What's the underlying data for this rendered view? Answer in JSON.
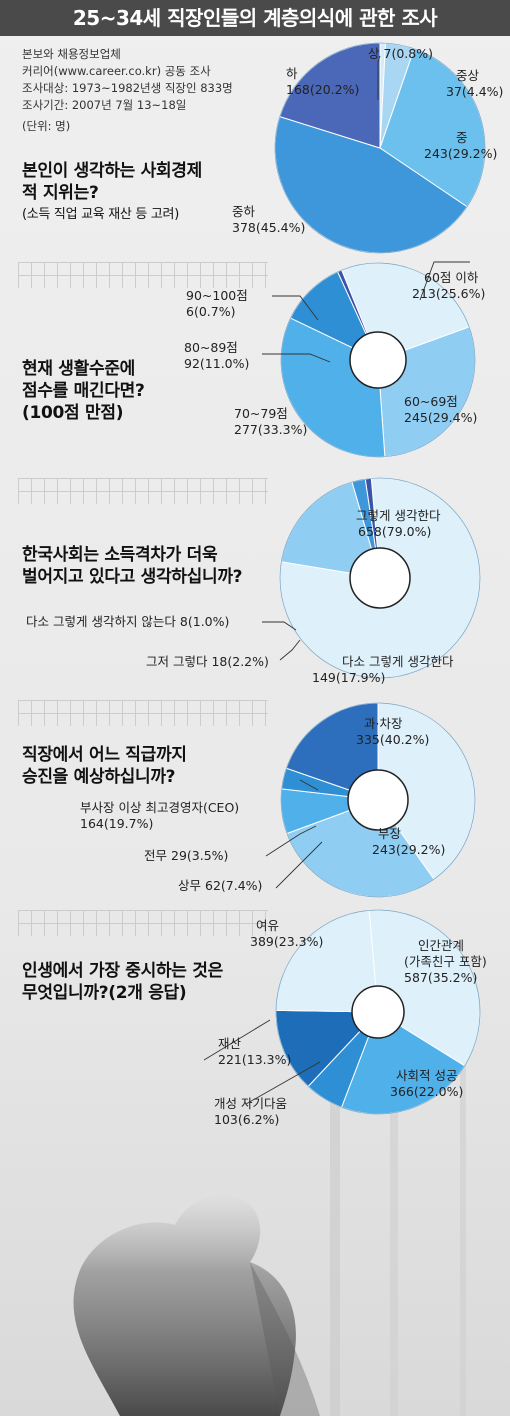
{
  "title": "25~34세 직장인들의 계층의식에 관한 조사",
  "meta": {
    "source": "본보와 채용정보업체",
    "source2": "커리어(www.career.co.kr) 공동 조사",
    "target": "조사대상: 1973~1982년생 직장인 833명",
    "period": "조사기간: 2007년 7월 13~18일",
    "unit": "(단위: 명)"
  },
  "chart_data": [
    {
      "type": "pie",
      "title": "본인이 생각하는 사회경제적 지위는?",
      "subtitle": "(소득 직업 교육 재산 등 고려)",
      "slices": [
        {
          "name": "상",
          "value": 7,
          "pct": "0.8%",
          "label_value": "7(0.8%)"
        },
        {
          "name": "중상",
          "value": 37,
          "pct": "4.4%",
          "label_value": "37(4.4%)"
        },
        {
          "name": "중",
          "value": 243,
          "pct": "29.2%",
          "label_value": "243(29.2%)"
        },
        {
          "name": "중하",
          "value": 378,
          "pct": "45.4%",
          "label_value": "378(45.4%)"
        },
        {
          "name": "하",
          "value": 168,
          "pct": "20.2%",
          "label_value": "168(20.2%)"
        }
      ]
    },
    {
      "type": "pie",
      "title": "현재 생활수준에 점수를 매긴다면? (100점 만점)",
      "title_lines": [
        "현재 생활수준에",
        "점수를 매긴다면?",
        "(100점 만점)"
      ],
      "slices": [
        {
          "name": "60점 이하",
          "value": 213,
          "pct": "25.6%",
          "label_value": "213(25.6%)"
        },
        {
          "name": "60~69점",
          "value": 245,
          "pct": "29.4%",
          "label_value": "245(29.4%)"
        },
        {
          "name": "70~79점",
          "value": 277,
          "pct": "33.3%",
          "label_value": "277(33.3%)"
        },
        {
          "name": "80~89점",
          "value": 92,
          "pct": "11.0%",
          "label_value": "92(11.0%)"
        },
        {
          "name": "90~100점",
          "value": 6,
          "pct": "0.7%",
          "label_value": "6(0.7%)"
        }
      ]
    },
    {
      "type": "pie",
      "title": "한국사회는 소득격차가 더욱 벌어지고 있다고 생각하십니까?",
      "title_lines": [
        "한국사회는 소득격차가 더욱",
        "벌어지고 있다고 생각하십니까?"
      ],
      "slices": [
        {
          "name": "그렇게 생각한다",
          "value": 658,
          "pct": "79.0%",
          "label_value": "658(79.0%)"
        },
        {
          "name": "다소 그렇게 생각한다",
          "value": 149,
          "pct": "17.9%",
          "label_value": "149(17.9%)"
        },
        {
          "name": "그저 그렇다",
          "value": 18,
          "pct": "2.2%",
          "label_value": "18(2.2%)"
        },
        {
          "name": "다소 그렇게 생각하지 않는다",
          "value": 8,
          "pct": "1.0%",
          "label_value": "8(1.0%)"
        }
      ]
    },
    {
      "type": "pie",
      "title": "직장에서 어느 직급까지 승진을 예상하십니까?",
      "title_lines": [
        "직장에서 어느 직급까지",
        "승진을 예상하십니까?"
      ],
      "slices": [
        {
          "name": "과·차장",
          "value": 335,
          "pct": "40.2%",
          "label_value": "335(40.2%)"
        },
        {
          "name": "부장",
          "value": 243,
          "pct": "29.2%",
          "label_value": "243(29.2%)"
        },
        {
          "name": "상무",
          "value": 62,
          "pct": "7.4%",
          "label_value": "62(7.4%)"
        },
        {
          "name": "전무",
          "value": 29,
          "pct": "3.5%",
          "label_value": "29(3.5%)"
        },
        {
          "name": "부사장 이상 최고경영자(CEO)",
          "value": 164,
          "pct": "19.7%",
          "label_value": "164(19.7%)"
        }
      ]
    },
    {
      "type": "pie",
      "title": "인생에서 가장 중시하는 것은 무엇입니까?(2개 응답)",
      "title_lines": [
        "인생에서 가장 중시하는 것은",
        "무엇입니까?(2개 응답)"
      ],
      "slices": [
        {
          "name": "인간관계",
          "name2": "(가족친구 포함)",
          "value": 587,
          "pct": "35.2%",
          "label_value": "587(35.2%)"
        },
        {
          "name": "사회적 성공",
          "value": 366,
          "pct": "22.0%",
          "label_value": "366(22.0%)"
        },
        {
          "name": "개성 자기다움",
          "value": 103,
          "pct": "6.2%",
          "label_value": "103(6.2%)"
        },
        {
          "name": "재산",
          "value": 221,
          "pct": "13.3%",
          "label_value": "221(13.3%)"
        },
        {
          "name": "여유",
          "value": 389,
          "pct": "23.3%",
          "label_value": "389(23.3%)"
        }
      ]
    }
  ],
  "colors": {
    "c1": [
      "#d7ecf8",
      "#a9d7f3",
      "#6cc0ee",
      "#3d97da",
      "#4a67b8"
    ],
    "c2": [
      "#def0fa",
      "#8fcdf2",
      "#4fb0ea",
      "#2e8fd4",
      "#3a55a8"
    ],
    "c3": [
      "#def0fa",
      "#8fcdf2",
      "#3d97da",
      "#3a55a8"
    ],
    "c4": [
      "#def0fa",
      "#8fcdf2",
      "#4fb0ea",
      "#2e8fd4",
      "#2d6fbd"
    ],
    "c5": [
      "#def0fa",
      "#4fb0ea",
      "#2e8fd4",
      "#1d6db8",
      "#def0fa"
    ]
  }
}
